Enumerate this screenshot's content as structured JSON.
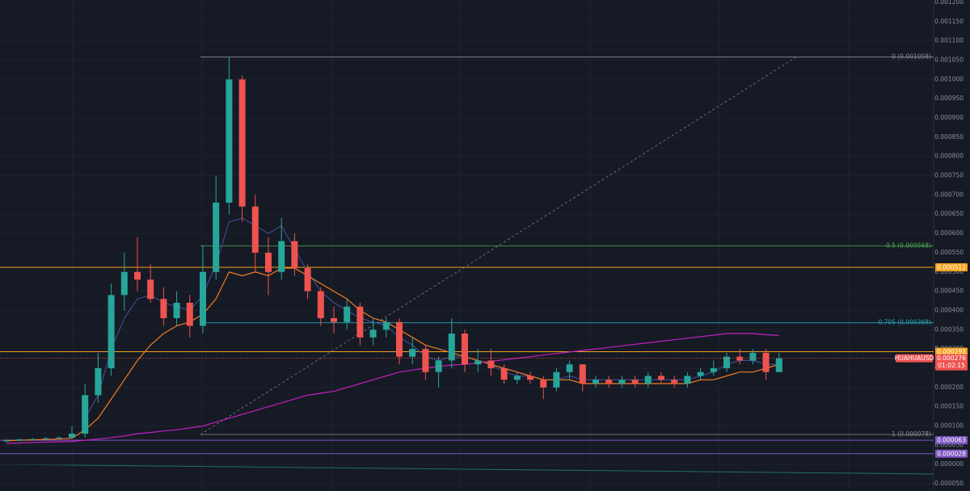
{
  "chart_data": {
    "type": "candlestick",
    "symbol": "HUAHUAUSD",
    "countdown": "01:02:15",
    "last_price": 0.000276,
    "up_color": "#26a69a",
    "down_color": "#ef5350",
    "ylim": [
      -5e-05,
      0.0012
    ],
    "yticks": [
      {
        "value": 0.0012,
        "label": "0.001200"
      },
      {
        "value": 0.00115,
        "label": "0.001150"
      },
      {
        "value": 0.0011,
        "label": "0.001100"
      },
      {
        "value": 0.00105,
        "label": "0.001050"
      },
      {
        "value": 0.001,
        "label": "0.001000"
      },
      {
        "value": 0.00095,
        "label": "0.000950"
      },
      {
        "value": 0.0009,
        "label": "0.000900"
      },
      {
        "value": 0.00085,
        "label": "0.000850"
      },
      {
        "value": 0.0008,
        "label": "0.000800"
      },
      {
        "value": 0.00075,
        "label": "0.000750"
      },
      {
        "value": 0.0007,
        "label": "0.000700"
      },
      {
        "value": 0.00065,
        "label": "0.000650"
      },
      {
        "value": 0.0006,
        "label": "0.000600"
      },
      {
        "value": 0.00055,
        "label": "0.000550"
      },
      {
        "value": 0.0005,
        "label": "0.000500"
      },
      {
        "value": 0.00045,
        "label": "0.000450"
      },
      {
        "value": 0.0004,
        "label": "0.000400"
      },
      {
        "value": 0.00035,
        "label": "0.000350"
      },
      {
        "value": 0.0003,
        "label": "0.000300"
      },
      {
        "value": 0.00025,
        "label": "0.000250"
      },
      {
        "value": 0.0002,
        "label": "0.000200"
      },
      {
        "value": 0.00015,
        "label": "0.000150"
      },
      {
        "value": 0.0001,
        "label": "0.000100"
      },
      {
        "value": 5e-05,
        "label": "0.000050"
      },
      {
        "value": 0,
        "label": "0.000000"
      },
      {
        "value": -5e-05,
        "label": "-0.000050"
      }
    ],
    "open": [
      6e-05,
      6.2e-05,
      6.5e-05,
      6.6e-05,
      6.8e-05,
      7e-05,
      8e-05,
      0.00018,
      0.00025,
      0.00044,
      0.0005,
      0.00048,
      0.00043,
      0.00038,
      0.00042,
      0.00036,
      0.0005,
      0.00068,
      0.001,
      0.00067,
      0.00055,
      0.0005,
      0.00058,
      0.00051,
      0.00045,
      0.00038,
      0.00037,
      0.00041,
      0.00033,
      0.00035,
      0.00037,
      0.00028,
      0.0003,
      0.00024,
      0.00027,
      0.00034,
      0.00026,
      0.00027,
      0.00025,
      0.00022,
      0.00023,
      0.00022,
      0.0002,
      0.00024,
      0.00026,
      0.00021,
      0.00022,
      0.00021,
      0.00022,
      0.00021,
      0.00023,
      0.00022,
      0.00021,
      0.00023,
      0.00024,
      0.00025,
      0.00028,
      0.00027,
      0.00029,
      0.00024
    ],
    "high": [
      6.6e-05,
      6.8e-05,
      6.9e-05,
      7.1e-05,
      7.3e-05,
      0.0001,
      0.00021,
      0.00029,
      0.00047,
      0.00055,
      0.00059,
      0.00052,
      0.00046,
      0.00045,
      0.00044,
      0.00057,
      0.00075,
      0.001058,
      0.00101,
      0.0007,
      0.00059,
      0.00064,
      0.0006,
      0.00052,
      0.00046,
      0.00041,
      0.00043,
      0.00042,
      0.00038,
      0.00038,
      0.00038,
      0.00033,
      0.00031,
      0.00028,
      0.00038,
      0.00035,
      0.0003,
      0.0003,
      0.00026,
      0.00024,
      0.00024,
      0.00023,
      0.00025,
      0.00027,
      0.00026,
      0.00023,
      0.00023,
      0.00023,
      0.00023,
      0.00024,
      0.00024,
      0.00023,
      0.00024,
      0.00025,
      0.00027,
      0.00029,
      0.0003,
      0.0003,
      0.0003,
      0.00029
    ],
    "low": [
      5.8e-05,
      6e-05,
      6.2e-05,
      6.4e-05,
      6.6e-05,
      6.8e-05,
      7e-05,
      0.00016,
      0.00023,
      0.0004,
      0.00045,
      0.00042,
      0.00036,
      0.00036,
      0.00033,
      0.00034,
      0.00048,
      0.00065,
      0.00063,
      0.0005,
      0.00044,
      0.00048,
      0.00049,
      0.00043,
      0.00036,
      0.00034,
      0.00035,
      0.00031,
      0.00031,
      0.00033,
      0.00026,
      0.00026,
      0.00022,
      0.0002,
      0.00025,
      0.00024,
      0.00024,
      0.00023,
      0.00021,
      0.00021,
      0.00021,
      0.00017,
      0.00019,
      0.00022,
      0.00019,
      0.0002,
      0.0002,
      0.0002,
      0.0002,
      0.0002,
      0.00021,
      0.0002,
      0.0002,
      0.00022,
      0.00023,
      0.00024,
      0.00026,
      0.00026,
      0.00022,
      0.00024
    ],
    "close": [
      6.2e-05,
      6.5e-05,
      6.6e-05,
      6.8e-05,
      7e-05,
      8e-05,
      0.00018,
      0.00025,
      0.00044,
      0.0005,
      0.00048,
      0.00043,
      0.00038,
      0.00042,
      0.00036,
      0.0005,
      0.00068,
      0.001,
      0.00067,
      0.00055,
      0.0005,
      0.00058,
      0.00051,
      0.00045,
      0.00038,
      0.00037,
      0.00041,
      0.00033,
      0.00035,
      0.00037,
      0.00028,
      0.0003,
      0.00024,
      0.00027,
      0.00034,
      0.00026,
      0.00027,
      0.00025,
      0.00022,
      0.00023,
      0.00022,
      0.0002,
      0.00024,
      0.00026,
      0.00021,
      0.00022,
      0.00021,
      0.00022,
      0.00021,
      0.00023,
      0.00022,
      0.00021,
      0.00023,
      0.00024,
      0.00025,
      0.00028,
      0.00027,
      0.00029,
      0.00024,
      0.000276
    ],
    "moving_averages": [
      {
        "color": "#3f4a8a",
        "values": [
          null,
          null,
          null,
          null,
          null,
          null,
          0.00012,
          0.00018,
          0.0003,
          0.00038,
          0.00043,
          0.00044,
          0.00042,
          0.00041,
          0.0004,
          0.00044,
          0.00052,
          0.00063,
          0.00064,
          0.00062,
          0.0006,
          0.00062,
          0.00056,
          0.0005,
          0.00045,
          0.00042,
          0.0004,
          0.00038,
          0.00037,
          0.00036,
          0.00033,
          0.00031,
          0.00028,
          0.00027,
          0.00028,
          0.00028,
          0.00027,
          0.00026,
          0.00024,
          0.00023,
          0.00023,
          0.00022,
          0.00022,
          0.00023,
          0.00022,
          0.00022,
          0.00022,
          0.00022,
          0.00022,
          0.00022,
          0.00022,
          0.00022,
          0.00022,
          0.00023,
          0.00024,
          0.00026,
          0.00027,
          0.00027,
          0.00026,
          0.00026
        ]
      },
      {
        "color": "#f57c1f",
        "values": [
          6.2e-05,
          6.3e-05,
          6.4e-05,
          6.5e-05,
          6.6e-05,
          6.8e-05,
          9e-05,
          0.00012,
          0.00017,
          0.00022,
          0.00027,
          0.00031,
          0.00034,
          0.00036,
          0.00037,
          0.00039,
          0.00043,
          0.0005,
          0.00049,
          0.0005,
          0.00049,
          0.00051,
          0.00051,
          0.00049,
          0.00047,
          0.00045,
          0.00043,
          0.0004,
          0.00038,
          0.00037,
          0.00035,
          0.00033,
          0.00031,
          0.0003,
          0.00029,
          0.00028,
          0.00027,
          0.00026,
          0.00025,
          0.00024,
          0.00023,
          0.00022,
          0.00022,
          0.00022,
          0.00021,
          0.00021,
          0.00021,
          0.00021,
          0.00021,
          0.00021,
          0.00021,
          0.00021,
          0.00021,
          0.00022,
          0.00022,
          0.00023,
          0.00024,
          0.00024,
          0.00025,
          0.00026
        ]
      },
      {
        "color": "#c020c0",
        "values": [
          5.5e-05,
          5.6e-05,
          5.7e-05,
          5.8e-05,
          5.9e-05,
          6e-05,
          6.3e-05,
          6.6e-05,
          7e-05,
          7.4e-05,
          8e-05,
          8.3e-05,
          8.7e-05,
          9e-05,
          9.5e-05,
          0.0001,
          0.00011,
          0.00012,
          0.00013,
          0.00014,
          0.00015,
          0.00016,
          0.00017,
          0.00018,
          0.000185,
          0.00019,
          0.0002,
          0.00021,
          0.00022,
          0.00023,
          0.00024,
          0.000245,
          0.00025,
          0.000255,
          0.000258,
          0.00026,
          0.000264,
          0.000268,
          0.000272,
          0.000276,
          0.00028,
          0.000284,
          0.000288,
          0.000292,
          0.000296,
          0.0003,
          0.000304,
          0.000308,
          0.000312,
          0.000316,
          0.00032,
          0.000324,
          0.000328,
          0.000332,
          0.000336,
          0.00034,
          0.00034,
          0.00034,
          0.000337,
          0.000335
        ]
      }
    ],
    "price_levels": [
      {
        "value": 0.000512,
        "color": "#f7a21b"
      },
      {
        "value": 0.000293,
        "color": "#f7a21b"
      },
      {
        "value": 6.3e-05,
        "color": "#7e57c2"
      },
      {
        "value": 2.8e-05,
        "color": "#7e57c2"
      }
    ],
    "fib_levels": [
      {
        "value": 0.001058,
        "label": "0 (0.001058)",
        "color": "#8a8f9c"
      },
      {
        "value": 0.000568,
        "label": "0.5 (0.000568)",
        "color": "#4caf50"
      },
      {
        "value": 0.000368,
        "label": "0.705 (0.000368)",
        "color": "#26a6b8"
      },
      {
        "value": 7.8e-05,
        "label": "1 (0.000078)",
        "color": "#8a8f9c"
      }
    ]
  }
}
